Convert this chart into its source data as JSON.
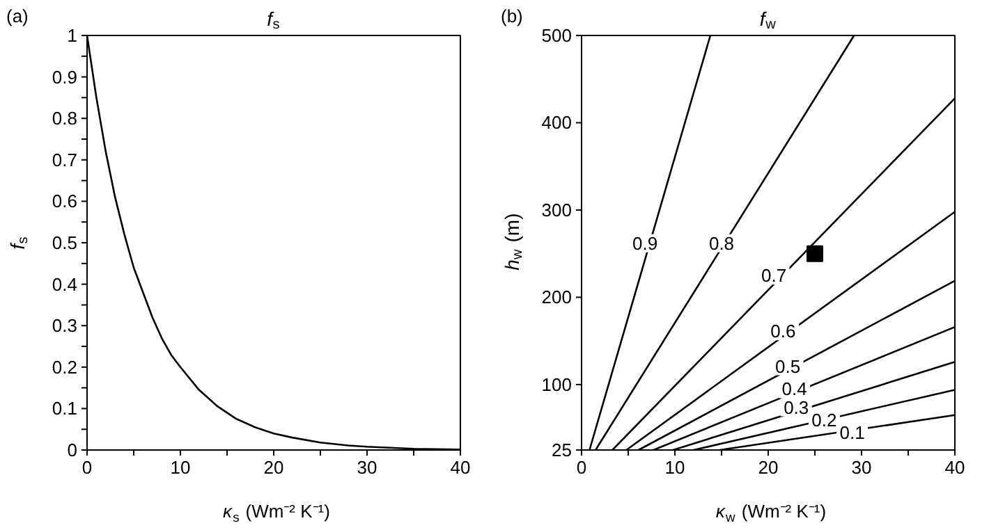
{
  "chart_data": [
    {
      "type": "line",
      "title": "f$_{s}$",
      "xlabel": "κ$_{s}$ (Wm⁻² K⁻¹)",
      "ylabel": "f$_{s}$",
      "annotations": [
        "(a)"
      ],
      "x": [
        0,
        1,
        2,
        3,
        4,
        5,
        6,
        7,
        8,
        9,
        10,
        12,
        14,
        16,
        18,
        20,
        22,
        25,
        28,
        30,
        35,
        40
      ],
      "series": [
        {
          "color": "#000000",
          "values": [
            1,
            0.85,
            0.72,
            0.61,
            0.52,
            0.44,
            0.38,
            0.32,
            0.27,
            0.23,
            0.2,
            0.145,
            0.105,
            0.075,
            0.055,
            0.04,
            0.03,
            0.018,
            0.011,
            0.008,
            0.003,
            0.001
          ]
        }
      ],
      "xlim": [
        0,
        40
      ],
      "ylim": [
        0,
        1
      ],
      "xticks": [
        0,
        {
          "value": 5,
          "label": null
        },
        10,
        {
          "value": 15,
          "label": null
        },
        20,
        {
          "value": 25,
          "label": null
        },
        30,
        {
          "value": 35,
          "label": null
        },
        40
      ],
      "yticks": [
        0,
        {
          "value": 0.05,
          "label": null
        },
        0.1,
        {
          "value": 0.15,
          "label": null
        },
        0.2,
        {
          "value": 0.25,
          "label": null
        },
        0.3,
        {
          "value": 0.35,
          "label": null
        },
        0.4,
        {
          "value": 0.45,
          "label": null
        },
        0.5,
        {
          "value": 0.55,
          "label": null
        },
        0.6,
        {
          "value": 0.65,
          "label": null
        },
        0.7,
        {
          "value": 0.75,
          "label": null
        },
        0.8,
        {
          "value": 0.85,
          "label": null
        },
        0.9,
        {
          "value": 0.95,
          "label": null
        },
        1
      ]
    },
    {
      "type": "line",
      "title": "f$_{w}$",
      "xlabel": "κ$_{w}$ (Wm⁻² K⁻¹)",
      "ylabel": "h$_{w}$ (m)",
      "annotations": [
        "(b)",
        {
          "text": "0.9",
          "x": 6.8,
          "y": 262
        },
        {
          "text": "0.8",
          "x": 15,
          "y": 262
        },
        {
          "text": "0.7",
          "x": 20.6,
          "y": 225
        },
        {
          "text": "0.6",
          "x": 21.6,
          "y": 161
        },
        {
          "text": "0.5",
          "x": 22.1,
          "y": 121
        },
        {
          "text": "0.4",
          "x": 22.8,
          "y": 95
        },
        {
          "text": "0.3",
          "x": 23,
          "y": 74
        },
        {
          "text": "0.2",
          "x": 26,
          "y": 59
        },
        {
          "text": "0.1",
          "x": 29,
          "y": 45
        }
      ],
      "series": [
        {
          "color": "#000000",
          "x": [
            0.85,
            13.8
          ],
          "values": [
            25,
            500
          ]
        },
        {
          "color": "#000000",
          "x": [
            1.5,
            29.2
          ],
          "values": [
            25,
            500
          ]
        },
        {
          "color": "#000000",
          "x": [
            3.3,
            40
          ],
          "values": [
            25,
            428
          ]
        },
        {
          "color": "#000000",
          "x": [
            4.8,
            40
          ],
          "values": [
            25,
            298
          ]
        },
        {
          "color": "#000000",
          "x": [
            6.1,
            40
          ],
          "values": [
            25,
            219
          ]
        },
        {
          "color": "#000000",
          "x": [
            7.7,
            40
          ],
          "values": [
            25,
            166
          ]
        },
        {
          "color": "#000000",
          "x": [
            9.8,
            40
          ],
          "values": [
            25,
            126
          ]
        },
        {
          "color": "#000000",
          "x": [
            12,
            40
          ],
          "values": [
            25,
            94
          ]
        },
        {
          "color": "#000000",
          "x": [
            14.8,
            40
          ],
          "values": [
            25,
            65
          ]
        },
        {
          "type": "scatter",
          "marker": "square",
          "color": "#000000",
          "x": [
            25
          ],
          "values": [
            250
          ]
        }
      ],
      "xlim": [
        0,
        40
      ],
      "ylim": [
        25,
        500
      ],
      "xticks": [
        0,
        {
          "value": 5,
          "label": null
        },
        10,
        {
          "value": 15,
          "label": null
        },
        20,
        {
          "value": 25,
          "label": null
        },
        30,
        {
          "value": 35,
          "label": null
        },
        40
      ],
      "yticks": [
        25,
        100,
        200,
        300,
        400,
        500
      ]
    }
  ]
}
